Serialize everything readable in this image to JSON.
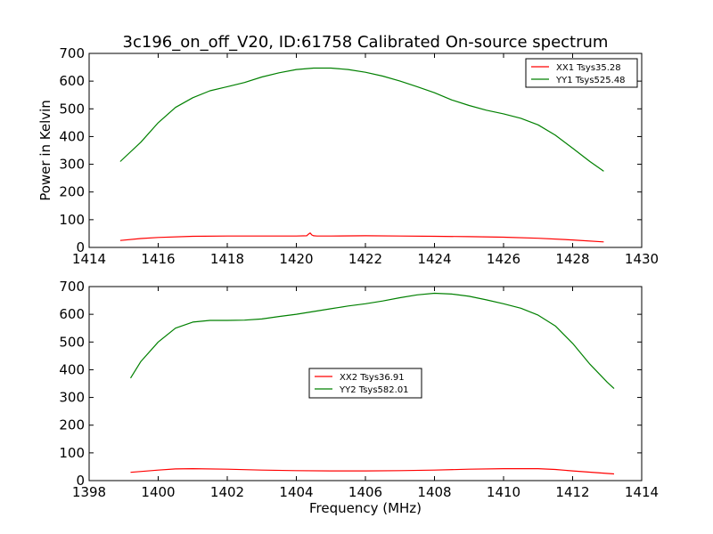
{
  "colors": {
    "xx": "#ff0000",
    "yy": "#008000",
    "axis": "#000000",
    "background": "#ffffff"
  },
  "chart_data": [
    {
      "type": "line",
      "title": "3c196_on_off_V20, ID:61758 Calibrated On-source spectrum",
      "xlabel": "",
      "ylabel": "Power in Kelvin",
      "xlim": [
        1414,
        1430
      ],
      "ylim": [
        0,
        700
      ],
      "xticks": [
        "1414",
        "1416",
        "1418",
        "1420",
        "1422",
        "1424",
        "1426",
        "1428",
        "1430"
      ],
      "yticks": [
        "0",
        "100",
        "200",
        "300",
        "400",
        "500",
        "600",
        "700"
      ],
      "legend_position": "upper-right",
      "grid": false,
      "series": [
        {
          "name": "XX1 Tsys35.28",
          "color": "#ff0000",
          "x": [
            1414.9,
            1415.5,
            1416.0,
            1417.0,
            1418.0,
            1419.0,
            1420.0,
            1420.3,
            1420.35,
            1420.4,
            1420.45,
            1420.5,
            1420.6,
            1421.0,
            1422.0,
            1423.0,
            1424.0,
            1425.0,
            1426.0,
            1427.0,
            1428.0,
            1428.9
          ],
          "y": [
            25,
            32,
            36,
            40,
            41,
            41,
            41,
            42,
            48,
            52,
            45,
            42,
            41,
            41,
            42,
            41,
            40,
            39,
            37,
            33,
            27,
            20
          ]
        },
        {
          "name": "YY1 Tsys525.48",
          "color": "#008000",
          "x": [
            1414.9,
            1415.5,
            1416.0,
            1416.5,
            1417.0,
            1417.5,
            1418.0,
            1418.5,
            1419.0,
            1419.5,
            1420.0,
            1420.5,
            1421.0,
            1421.5,
            1422.0,
            1422.5,
            1423.0,
            1423.5,
            1424.0,
            1424.5,
            1425.0,
            1425.5,
            1426.0,
            1426.5,
            1427.0,
            1427.5,
            1428.0,
            1428.5,
            1428.9
          ],
          "y": [
            310,
            380,
            450,
            505,
            540,
            565,
            580,
            595,
            615,
            630,
            642,
            647,
            647,
            642,
            632,
            618,
            600,
            580,
            558,
            532,
            512,
            495,
            482,
            466,
            442,
            405,
            358,
            310,
            275
          ]
        }
      ]
    },
    {
      "type": "line",
      "title": "",
      "xlabel": "Frequency (MHz)",
      "ylabel": "",
      "xlim": [
        1398,
        1414
      ],
      "ylim": [
        0,
        700
      ],
      "xticks": [
        "1398",
        "1400",
        "1402",
        "1404",
        "1406",
        "1408",
        "1410",
        "1412",
        "1414"
      ],
      "yticks": [
        "0",
        "100",
        "200",
        "300",
        "400",
        "500",
        "600",
        "700"
      ],
      "legend_position": "center",
      "grid": false,
      "series": [
        {
          "name": "XX2 Tsys36.91",
          "color": "#ff0000",
          "x": [
            1399.2,
            1400.0,
            1400.5,
            1401.0,
            1402.0,
            1403.0,
            1404.0,
            1405.0,
            1406.0,
            1407.0,
            1408.0,
            1409.0,
            1410.0,
            1411.0,
            1411.5,
            1412.0,
            1413.2
          ],
          "y": [
            30,
            38,
            42,
            43,
            41,
            38,
            36,
            35,
            35,
            36,
            38,
            41,
            43,
            43,
            40,
            35,
            24
          ]
        },
        {
          "name": "YY2 Tsys582.01",
          "color": "#008000",
          "x": [
            1399.2,
            1399.5,
            1400.0,
            1400.5,
            1401.0,
            1401.5,
            1402.0,
            1402.5,
            1403.0,
            1403.5,
            1404.0,
            1404.5,
            1405.0,
            1405.5,
            1406.0,
            1406.5,
            1407.0,
            1407.5,
            1408.0,
            1408.5,
            1409.0,
            1409.5,
            1410.0,
            1410.5,
            1411.0,
            1411.5,
            1412.0,
            1412.5,
            1413.0,
            1413.2
          ],
          "y": [
            370,
            430,
            500,
            550,
            572,
            578,
            578,
            579,
            583,
            592,
            600,
            610,
            620,
            630,
            638,
            648,
            660,
            670,
            676,
            673,
            665,
            652,
            638,
            622,
            597,
            558,
            495,
            420,
            355,
            332
          ]
        }
      ]
    }
  ]
}
